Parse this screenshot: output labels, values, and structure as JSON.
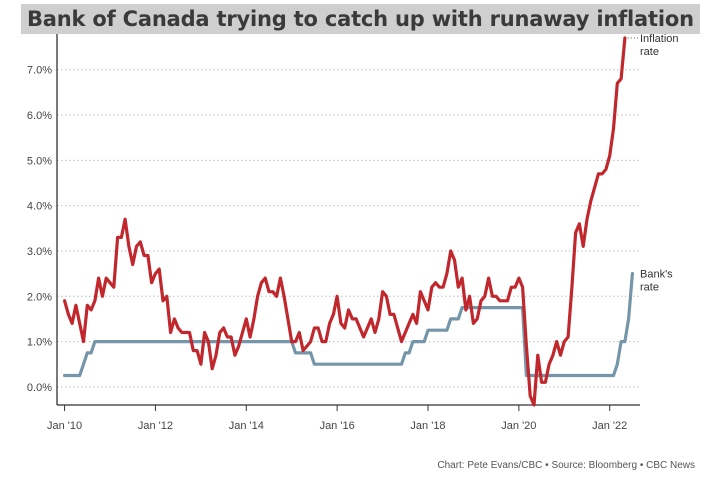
{
  "title": "Bank of Canada trying to catch up with runaway inflation",
  "source": "Chart: Pete Evans/CBC • Source: Bloomberg • CBC News",
  "colors": {
    "inflation": "#c0282d",
    "bank": "#7595a8",
    "grid": "#bbbbbb",
    "axis": "#333333"
  },
  "chart_data": {
    "type": "line",
    "x_ticks": [
      "Jan '10",
      "Jan '12",
      "Jan '14",
      "Jan '16",
      "Jan '18",
      "Jan '20",
      "Jan '22"
    ],
    "y_ticks": [
      "0.0%",
      "1.0%",
      "2.0%",
      "3.0%",
      "4.0%",
      "5.0%",
      "6.0%",
      "7.0%"
    ],
    "ylim": [
      -0.4,
      7.7
    ],
    "xlim": [
      "2009-11",
      "2022-09"
    ],
    "grid": true,
    "series": [
      {
        "name": "Inflation rate",
        "label_lines": [
          "Inflation",
          "rate"
        ],
        "points": [
          [
            "2010-01",
            1.9
          ],
          [
            "2010-02",
            1.6
          ],
          [
            "2010-03",
            1.4
          ],
          [
            "2010-04",
            1.8
          ],
          [
            "2010-05",
            1.4
          ],
          [
            "2010-06",
            1.0
          ],
          [
            "2010-07",
            1.8
          ],
          [
            "2010-08",
            1.7
          ],
          [
            "2010-09",
            1.9
          ],
          [
            "2010-10",
            2.4
          ],
          [
            "2010-11",
            2.0
          ],
          [
            "2010-12",
            2.4
          ],
          [
            "2011-01",
            2.3
          ],
          [
            "2011-02",
            2.2
          ],
          [
            "2011-03",
            3.3
          ],
          [
            "2011-04",
            3.3
          ],
          [
            "2011-05",
            3.7
          ],
          [
            "2011-06",
            3.1
          ],
          [
            "2011-07",
            2.7
          ],
          [
            "2011-08",
            3.1
          ],
          [
            "2011-09",
            3.2
          ],
          [
            "2011-10",
            2.9
          ],
          [
            "2011-11",
            2.9
          ],
          [
            "2011-12",
            2.3
          ],
          [
            "2012-01",
            2.5
          ],
          [
            "2012-02",
            2.6
          ],
          [
            "2012-03",
            1.9
          ],
          [
            "2012-04",
            2.0
          ],
          [
            "2012-05",
            1.2
          ],
          [
            "2012-06",
            1.5
          ],
          [
            "2012-07",
            1.3
          ],
          [
            "2012-08",
            1.2
          ],
          [
            "2012-09",
            1.2
          ],
          [
            "2012-10",
            1.2
          ],
          [
            "2012-11",
            0.8
          ],
          [
            "2012-12",
            0.8
          ],
          [
            "2013-01",
            0.5
          ],
          [
            "2013-02",
            1.2
          ],
          [
            "2013-03",
            1.0
          ],
          [
            "2013-04",
            0.4
          ],
          [
            "2013-05",
            0.7
          ],
          [
            "2013-06",
            1.2
          ],
          [
            "2013-07",
            1.3
          ],
          [
            "2013-08",
            1.1
          ],
          [
            "2013-09",
            1.1
          ],
          [
            "2013-10",
            0.7
          ],
          [
            "2013-11",
            0.9
          ],
          [
            "2013-12",
            1.2
          ],
          [
            "2014-01",
            1.5
          ],
          [
            "2014-02",
            1.1
          ],
          [
            "2014-03",
            1.5
          ],
          [
            "2014-04",
            2.0
          ],
          [
            "2014-05",
            2.3
          ],
          [
            "2014-06",
            2.4
          ],
          [
            "2014-07",
            2.1
          ],
          [
            "2014-08",
            2.1
          ],
          [
            "2014-09",
            2.0
          ],
          [
            "2014-10",
            2.4
          ],
          [
            "2014-11",
            2.0
          ],
          [
            "2014-12",
            1.5
          ],
          [
            "2015-01",
            1.0
          ],
          [
            "2015-02",
            1.0
          ],
          [
            "2015-03",
            1.2
          ],
          [
            "2015-04",
            0.8
          ],
          [
            "2015-05",
            0.9
          ],
          [
            "2015-06",
            1.0
          ],
          [
            "2015-07",
            1.3
          ],
          [
            "2015-08",
            1.3
          ],
          [
            "2015-09",
            1.0
          ],
          [
            "2015-10",
            1.0
          ],
          [
            "2015-11",
            1.4
          ],
          [
            "2015-12",
            1.6
          ],
          [
            "2016-01",
            2.0
          ],
          [
            "2016-02",
            1.4
          ],
          [
            "2016-03",
            1.3
          ],
          [
            "2016-04",
            1.7
          ],
          [
            "2016-05",
            1.5
          ],
          [
            "2016-06",
            1.5
          ],
          [
            "2016-07",
            1.3
          ],
          [
            "2016-08",
            1.1
          ],
          [
            "2016-09",
            1.3
          ],
          [
            "2016-10",
            1.5
          ],
          [
            "2016-11",
            1.2
          ],
          [
            "2016-12",
            1.5
          ],
          [
            "2017-01",
            2.1
          ],
          [
            "2017-02",
            2.0
          ],
          [
            "2017-03",
            1.6
          ],
          [
            "2017-04",
            1.6
          ],
          [
            "2017-05",
            1.3
          ],
          [
            "2017-06",
            1.0
          ],
          [
            "2017-07",
            1.2
          ],
          [
            "2017-08",
            1.4
          ],
          [
            "2017-09",
            1.6
          ],
          [
            "2017-10",
            1.4
          ],
          [
            "2017-11",
            2.1
          ],
          [
            "2017-12",
            1.9
          ],
          [
            "2018-01",
            1.7
          ],
          [
            "2018-02",
            2.2
          ],
          [
            "2018-03",
            2.3
          ],
          [
            "2018-04",
            2.2
          ],
          [
            "2018-05",
            2.2
          ],
          [
            "2018-06",
            2.5
          ],
          [
            "2018-07",
            3.0
          ],
          [
            "2018-08",
            2.8
          ],
          [
            "2018-09",
            2.2
          ],
          [
            "2018-10",
            2.4
          ],
          [
            "2018-11",
            1.7
          ],
          [
            "2018-12",
            2.0
          ],
          [
            "2019-01",
            1.4
          ],
          [
            "2019-02",
            1.5
          ],
          [
            "2019-03",
            1.9
          ],
          [
            "2019-04",
            2.0
          ],
          [
            "2019-05",
            2.4
          ],
          [
            "2019-06",
            2.0
          ],
          [
            "2019-07",
            2.0
          ],
          [
            "2019-08",
            1.9
          ],
          [
            "2019-09",
            1.9
          ],
          [
            "2019-10",
            1.9
          ],
          [
            "2019-11",
            2.2
          ],
          [
            "2019-12",
            2.2
          ],
          [
            "2020-01",
            2.4
          ],
          [
            "2020-02",
            2.2
          ],
          [
            "2020-03",
            0.9
          ],
          [
            "2020-04",
            -0.2
          ],
          [
            "2020-05",
            -0.4
          ],
          [
            "2020-06",
            0.7
          ],
          [
            "2020-07",
            0.1
          ],
          [
            "2020-08",
            0.1
          ],
          [
            "2020-09",
            0.5
          ],
          [
            "2020-10",
            0.7
          ],
          [
            "2020-11",
            1.0
          ],
          [
            "2020-12",
            0.7
          ],
          [
            "2021-01",
            1.0
          ],
          [
            "2021-02",
            1.1
          ],
          [
            "2021-03",
            2.2
          ],
          [
            "2021-04",
            3.4
          ],
          [
            "2021-05",
            3.6
          ],
          [
            "2021-06",
            3.1
          ],
          [
            "2021-07",
            3.7
          ],
          [
            "2021-08",
            4.1
          ],
          [
            "2021-09",
            4.4
          ],
          [
            "2021-10",
            4.7
          ],
          [
            "2021-11",
            4.7
          ],
          [
            "2021-12",
            4.8
          ],
          [
            "2022-01",
            5.1
          ],
          [
            "2022-02",
            5.7
          ],
          [
            "2022-03",
            6.7
          ],
          [
            "2022-04",
            6.8
          ],
          [
            "2022-05",
            7.7
          ]
        ]
      },
      {
        "name": "Bank's rate",
        "label_lines": [
          "Bank's",
          "rate"
        ],
        "points": [
          [
            "2010-01",
            0.25
          ],
          [
            "2010-05",
            0.25
          ],
          [
            "2010-06",
            0.5
          ],
          [
            "2010-07",
            0.75
          ],
          [
            "2010-08",
            0.75
          ],
          [
            "2010-09",
            1.0
          ],
          [
            "2015-01",
            1.0
          ],
          [
            "2015-02",
            0.75
          ],
          [
            "2015-06",
            0.75
          ],
          [
            "2015-07",
            0.5
          ],
          [
            "2017-06",
            0.5
          ],
          [
            "2017-07",
            0.75
          ],
          [
            "2017-08",
            0.75
          ],
          [
            "2017-09",
            1.0
          ],
          [
            "2017-12",
            1.0
          ],
          [
            "2018-01",
            1.25
          ],
          [
            "2018-06",
            1.25
          ],
          [
            "2018-07",
            1.5
          ],
          [
            "2018-09",
            1.5
          ],
          [
            "2018-10",
            1.75
          ],
          [
            "2020-02",
            1.75
          ],
          [
            "2020-03",
            0.25
          ],
          [
            "2022-02",
            0.25
          ],
          [
            "2022-03",
            0.5
          ],
          [
            "2022-04",
            1.0
          ],
          [
            "2022-05",
            1.0
          ],
          [
            "2022-06",
            1.5
          ],
          [
            "2022-07",
            2.5
          ]
        ]
      }
    ]
  }
}
